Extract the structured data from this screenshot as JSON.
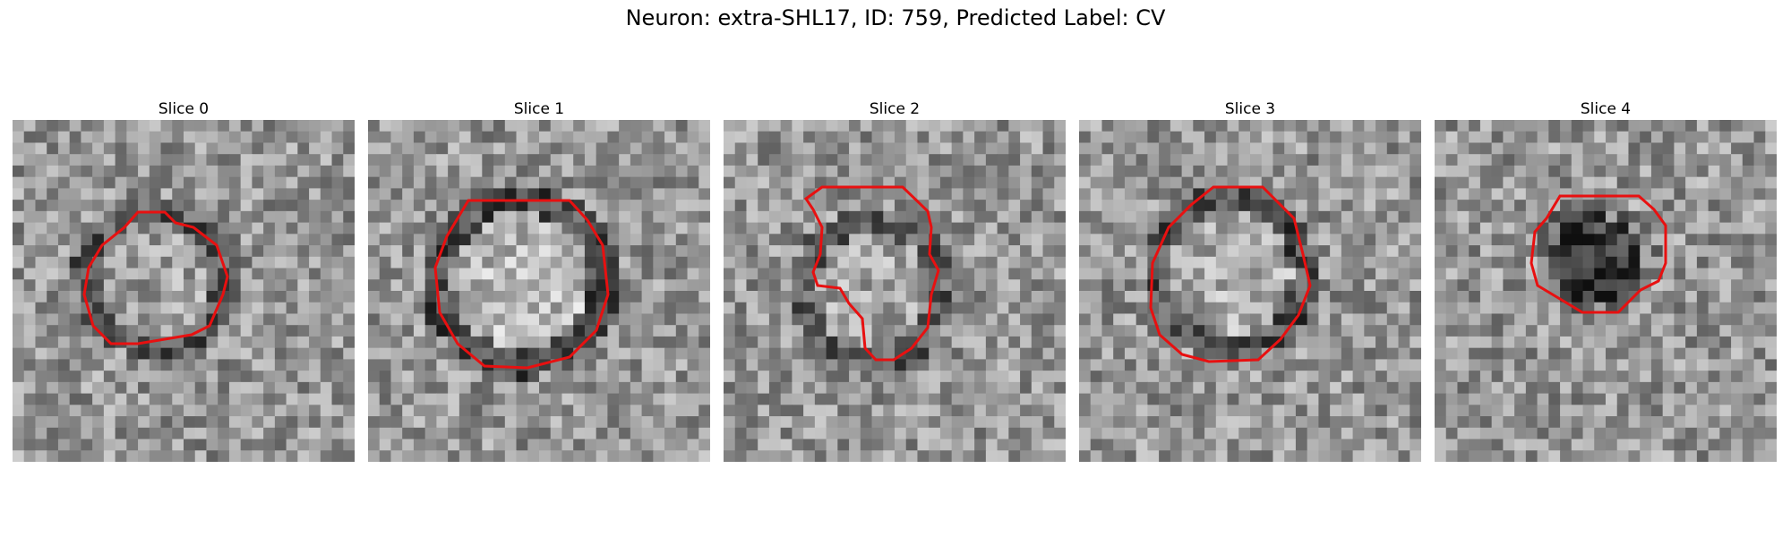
{
  "figure": {
    "title": "Neuron: extra-SHL17, ID: 759, Predicted Label: CV"
  },
  "contour_color": "#e81010",
  "panels": [
    {
      "title": "Slice 0"
    },
    {
      "title": "Slice 1"
    },
    {
      "title": "Slice 2"
    },
    {
      "title": "Slice 3"
    },
    {
      "title": "Slice 4"
    }
  ]
}
